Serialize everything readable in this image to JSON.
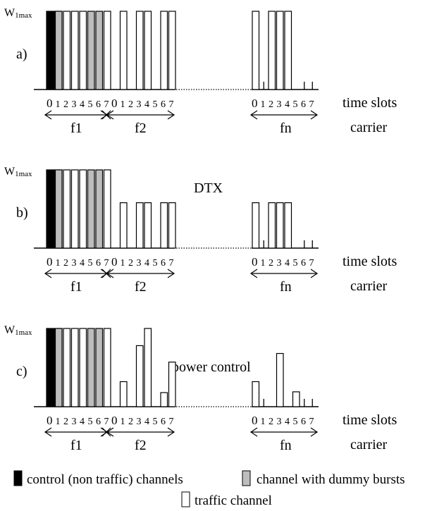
{
  "diagram": {
    "panels": [
      {
        "id": "a",
        "label": "a)",
        "ymax_label": "W",
        "ymax_sub": "1max",
        "annotation": "",
        "carriers": [
          {
            "name": "f1",
            "slots": [
              {
                "slot": 0,
                "type": "control",
                "level": 1.0
              },
              {
                "slot": 1,
                "type": "dummy",
                "level": 1.0
              },
              {
                "slot": 2,
                "type": "traffic",
                "level": 1.0
              },
              {
                "slot": 3,
                "type": "traffic",
                "level": 1.0
              },
              {
                "slot": 4,
                "type": "traffic",
                "level": 1.0
              },
              {
                "slot": 5,
                "type": "dummy",
                "level": 1.0
              },
              {
                "slot": 6,
                "type": "dummy",
                "level": 1.0
              },
              {
                "slot": 7,
                "type": "traffic",
                "level": 1.0
              }
            ]
          },
          {
            "name": "f2",
            "slots": [
              {
                "slot": 0,
                "type": "idle",
                "level": 0
              },
              {
                "slot": 1,
                "type": "traffic",
                "level": 1.0
              },
              {
                "slot": 2,
                "type": "idle",
                "level": 0
              },
              {
                "slot": 3,
                "type": "traffic",
                "level": 1.0
              },
              {
                "slot": 4,
                "type": "traffic",
                "level": 1.0
              },
              {
                "slot": 5,
                "type": "idle",
                "level": 0
              },
              {
                "slot": 6,
                "type": "traffic",
                "level": 1.0
              },
              {
                "slot": 7,
                "type": "traffic",
                "level": 1.0
              }
            ]
          },
          {
            "name": "fn",
            "slots": [
              {
                "slot": 0,
                "type": "traffic",
                "level": 1.0
              },
              {
                "slot": 1,
                "type": "idle",
                "level": 0.1
              },
              {
                "slot": 2,
                "type": "traffic",
                "level": 1.0
              },
              {
                "slot": 3,
                "type": "traffic",
                "level": 1.0
              },
              {
                "slot": 4,
                "type": "traffic",
                "level": 1.0
              },
              {
                "slot": 5,
                "type": "idle",
                "level": 0
              },
              {
                "slot": 6,
                "type": "idle",
                "level": 0.1
              },
              {
                "slot": 7,
                "type": "idle",
                "level": 0.1
              }
            ]
          }
        ]
      },
      {
        "id": "b",
        "label": "b)",
        "ymax_label": "W",
        "ymax_sub": "1max",
        "annotation": "DTX",
        "carriers": [
          {
            "name": "f1",
            "slots": [
              {
                "slot": 0,
                "type": "control",
                "level": 1.0
              },
              {
                "slot": 1,
                "type": "dummy",
                "level": 1.0
              },
              {
                "slot": 2,
                "type": "traffic",
                "level": 1.0
              },
              {
                "slot": 3,
                "type": "traffic",
                "level": 1.0
              },
              {
                "slot": 4,
                "type": "traffic",
                "level": 1.0
              },
              {
                "slot": 5,
                "type": "dummy",
                "level": 1.0
              },
              {
                "slot": 6,
                "type": "dummy",
                "level": 1.0
              },
              {
                "slot": 7,
                "type": "traffic",
                "level": 1.0
              }
            ]
          },
          {
            "name": "f2",
            "slots": [
              {
                "slot": 0,
                "type": "idle",
                "level": 0
              },
              {
                "slot": 1,
                "type": "traffic",
                "level": 0.58
              },
              {
                "slot": 2,
                "type": "idle",
                "level": 0
              },
              {
                "slot": 3,
                "type": "traffic",
                "level": 0.58
              },
              {
                "slot": 4,
                "type": "traffic",
                "level": 0.58
              },
              {
                "slot": 5,
                "type": "idle",
                "level": 0
              },
              {
                "slot": 6,
                "type": "traffic",
                "level": 0.58
              },
              {
                "slot": 7,
                "type": "traffic",
                "level": 0.58
              }
            ]
          },
          {
            "name": "fn",
            "slots": [
              {
                "slot": 0,
                "type": "traffic",
                "level": 0.58
              },
              {
                "slot": 1,
                "type": "idle",
                "level": 0.1
              },
              {
                "slot": 2,
                "type": "traffic",
                "level": 0.58
              },
              {
                "slot": 3,
                "type": "traffic",
                "level": 0.58
              },
              {
                "slot": 4,
                "type": "traffic",
                "level": 0.58
              },
              {
                "slot": 5,
                "type": "idle",
                "level": 0
              },
              {
                "slot": 6,
                "type": "idle",
                "level": 0.1
              },
              {
                "slot": 7,
                "type": "idle",
                "level": 0.1
              }
            ]
          }
        ]
      },
      {
        "id": "c",
        "label": "c)",
        "ymax_label": "W",
        "ymax_sub": "1max",
        "annotation": "power control",
        "carriers": [
          {
            "name": "f1",
            "slots": [
              {
                "slot": 0,
                "type": "control",
                "level": 1.0
              },
              {
                "slot": 1,
                "type": "dummy",
                "level": 1.0
              },
              {
                "slot": 2,
                "type": "traffic",
                "level": 1.0
              },
              {
                "slot": 3,
                "type": "traffic",
                "level": 1.0
              },
              {
                "slot": 4,
                "type": "traffic",
                "level": 1.0
              },
              {
                "slot": 5,
                "type": "dummy",
                "level": 1.0
              },
              {
                "slot": 6,
                "type": "dummy",
                "level": 1.0
              },
              {
                "slot": 7,
                "type": "traffic",
                "level": 1.0
              }
            ]
          },
          {
            "name": "f2",
            "slots": [
              {
                "slot": 0,
                "type": "idle",
                "level": 0
              },
              {
                "slot": 1,
                "type": "traffic",
                "level": 0.32
              },
              {
                "slot": 2,
                "type": "idle",
                "level": 0
              },
              {
                "slot": 3,
                "type": "traffic",
                "level": 0.78
              },
              {
                "slot": 4,
                "type": "traffic",
                "level": 1.0
              },
              {
                "slot": 5,
                "type": "idle",
                "level": 0
              },
              {
                "slot": 6,
                "type": "traffic",
                "level": 0.18
              },
              {
                "slot": 7,
                "type": "traffic",
                "level": 0.57
              }
            ]
          },
          {
            "name": "fn",
            "slots": [
              {
                "slot": 0,
                "type": "traffic",
                "level": 0.32
              },
              {
                "slot": 1,
                "type": "idle",
                "level": 0.1
              },
              {
                "slot": 2,
                "type": "idle",
                "level": 0
              },
              {
                "slot": 3,
                "type": "traffic",
                "level": 0.68
              },
              {
                "slot": 4,
                "type": "idle",
                "level": 0
              },
              {
                "slot": 5,
                "type": "traffic",
                "level": 0.19
              },
              {
                "slot": 6,
                "type": "idle",
                "level": 0.1
              },
              {
                "slot": 7,
                "type": "idle",
                "level": 0.1
              }
            ]
          }
        ]
      }
    ],
    "slot_labels": [
      "0",
      "1",
      "2",
      "3",
      "4",
      "5",
      "6",
      "7"
    ],
    "time_slots_label": "time slots",
    "carrier_label": "carrier"
  },
  "legend": {
    "control": "control (non traffic) channels",
    "dummy": "channel with dummy bursts",
    "traffic": "traffic channel"
  },
  "colors": {
    "control": "#000000",
    "dummy": "#bdbdbd",
    "traffic": "#ffffff",
    "stroke": "#000000"
  }
}
